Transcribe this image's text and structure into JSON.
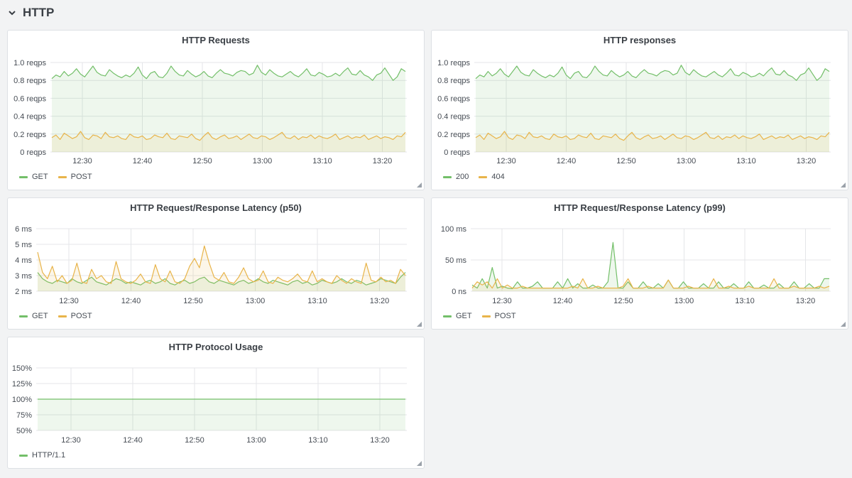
{
  "row": {
    "title": "HTTP"
  },
  "panels": {
    "requests": {
      "title": "HTTP Requests"
    },
    "responses": {
      "title": "HTTP responses"
    },
    "p50": {
      "title": "HTTP Request/Response Latency (p50)"
    },
    "p99": {
      "title": "HTTP Request/Response Latency (p99)"
    },
    "protocol": {
      "title": "HTTP Protocol Usage"
    }
  },
  "colors": {
    "green": "#73bf69",
    "yellow": "#e8b44a",
    "green_fill": "rgba(115,191,105,0.12)",
    "yellow_fill": "rgba(232,180,74,0.12)"
  },
  "chart_data": [
    {
      "id": "requests",
      "type": "line",
      "title": "HTTP Requests",
      "x_ticks": [
        "12:30",
        "12:40",
        "12:50",
        "13:00",
        "13:10",
        "13:20"
      ],
      "y_ticks": [
        "1.0 reqps",
        "0.8 reqps",
        "0.6 reqps",
        "0.4 reqps",
        "0.2 reqps",
        "0 reqps"
      ],
      "ylim": [
        0,
        1.0
      ],
      "grid": true,
      "legend": "bottom-left",
      "series": [
        {
          "name": "GET",
          "color": "#73bf69",
          "values": [
            0.82,
            0.86,
            0.84,
            0.9,
            0.85,
            0.88,
            0.93,
            0.87,
            0.84,
            0.9,
            0.96,
            0.89,
            0.86,
            0.85,
            0.92,
            0.88,
            0.85,
            0.83,
            0.86,
            0.84,
            0.88,
            0.95,
            0.86,
            0.82,
            0.88,
            0.9,
            0.84,
            0.83,
            0.88,
            0.96,
            0.9,
            0.86,
            0.85,
            0.91,
            0.87,
            0.84,
            0.86,
            0.9,
            0.85,
            0.83,
            0.88,
            0.92,
            0.88,
            0.87,
            0.85,
            0.89,
            0.91,
            0.9,
            0.86,
            0.88,
            0.97,
            0.89,
            0.86,
            0.92,
            0.88,
            0.85,
            0.84,
            0.87,
            0.9,
            0.86,
            0.84,
            0.88,
            0.93,
            0.86,
            0.85,
            0.89,
            0.87,
            0.84,
            0.85,
            0.88,
            0.85,
            0.9,
            0.94,
            0.87,
            0.86,
            0.91,
            0.86,
            0.84,
            0.8,
            0.86,
            0.88,
            0.94,
            0.87,
            0.8,
            0.84,
            0.93,
            0.9
          ]
        },
        {
          "name": "POST",
          "color": "#e8b44a",
          "values": [
            0.16,
            0.19,
            0.14,
            0.21,
            0.18,
            0.15,
            0.17,
            0.23,
            0.16,
            0.14,
            0.19,
            0.18,
            0.15,
            0.22,
            0.17,
            0.16,
            0.18,
            0.15,
            0.14,
            0.2,
            0.17,
            0.16,
            0.18,
            0.14,
            0.15,
            0.19,
            0.17,
            0.16,
            0.21,
            0.15,
            0.14,
            0.18,
            0.17,
            0.16,
            0.2,
            0.15,
            0.13,
            0.18,
            0.22,
            0.16,
            0.14,
            0.17,
            0.19,
            0.15,
            0.16,
            0.18,
            0.14,
            0.17,
            0.2,
            0.16,
            0.15,
            0.18,
            0.17,
            0.14,
            0.16,
            0.19,
            0.22,
            0.16,
            0.15,
            0.18,
            0.14,
            0.17,
            0.16,
            0.19,
            0.15,
            0.18,
            0.16,
            0.15,
            0.17,
            0.2,
            0.14,
            0.16,
            0.18,
            0.15,
            0.17,
            0.16,
            0.19,
            0.14,
            0.16,
            0.18,
            0.15,
            0.17,
            0.16,
            0.14,
            0.18,
            0.17,
            0.22
          ]
        }
      ]
    },
    {
      "id": "responses",
      "type": "line",
      "title": "HTTP responses",
      "x_ticks": [
        "12:30",
        "12:40",
        "12:50",
        "13:00",
        "13:10",
        "13:20"
      ],
      "y_ticks": [
        "1.0 reqps",
        "0.8 reqps",
        "0.6 reqps",
        "0.4 reqps",
        "0.2 reqps",
        "0 reqps"
      ],
      "ylim": [
        0,
        1.0
      ],
      "grid": true,
      "legend": "bottom-left",
      "series": [
        {
          "name": "200",
          "color": "#73bf69",
          "values": [
            0.82,
            0.86,
            0.84,
            0.9,
            0.85,
            0.88,
            0.93,
            0.87,
            0.84,
            0.9,
            0.96,
            0.89,
            0.86,
            0.85,
            0.92,
            0.88,
            0.85,
            0.83,
            0.86,
            0.84,
            0.88,
            0.95,
            0.86,
            0.82,
            0.88,
            0.9,
            0.84,
            0.83,
            0.88,
            0.96,
            0.9,
            0.86,
            0.85,
            0.91,
            0.87,
            0.84,
            0.86,
            0.9,
            0.85,
            0.83,
            0.88,
            0.92,
            0.88,
            0.87,
            0.85,
            0.89,
            0.91,
            0.9,
            0.86,
            0.88,
            0.97,
            0.89,
            0.86,
            0.92,
            0.88,
            0.85,
            0.84,
            0.87,
            0.9,
            0.86,
            0.84,
            0.88,
            0.93,
            0.86,
            0.85,
            0.89,
            0.87,
            0.84,
            0.85,
            0.88,
            0.85,
            0.9,
            0.94,
            0.87,
            0.86,
            0.91,
            0.86,
            0.84,
            0.8,
            0.86,
            0.88,
            0.94,
            0.87,
            0.8,
            0.84,
            0.93,
            0.9
          ]
        },
        {
          "name": "404",
          "color": "#e8b44a",
          "values": [
            0.16,
            0.19,
            0.14,
            0.21,
            0.18,
            0.15,
            0.17,
            0.23,
            0.16,
            0.14,
            0.19,
            0.18,
            0.15,
            0.22,
            0.17,
            0.16,
            0.18,
            0.15,
            0.14,
            0.2,
            0.17,
            0.16,
            0.18,
            0.14,
            0.15,
            0.19,
            0.17,
            0.16,
            0.21,
            0.15,
            0.14,
            0.18,
            0.17,
            0.16,
            0.2,
            0.15,
            0.13,
            0.18,
            0.22,
            0.16,
            0.14,
            0.17,
            0.19,
            0.15,
            0.16,
            0.18,
            0.14,
            0.17,
            0.2,
            0.16,
            0.15,
            0.18,
            0.17,
            0.14,
            0.16,
            0.19,
            0.22,
            0.16,
            0.15,
            0.18,
            0.14,
            0.17,
            0.16,
            0.19,
            0.15,
            0.18,
            0.16,
            0.15,
            0.17,
            0.2,
            0.14,
            0.16,
            0.18,
            0.15,
            0.17,
            0.16,
            0.19,
            0.14,
            0.16,
            0.18,
            0.15,
            0.17,
            0.16,
            0.14,
            0.18,
            0.17,
            0.22
          ]
        }
      ]
    },
    {
      "id": "p50",
      "type": "line",
      "title": "HTTP Request/Response Latency (p50)",
      "x_ticks": [
        "12:30",
        "12:40",
        "12:50",
        "13:00",
        "13:10",
        "13:20"
      ],
      "y_ticks": [
        "6 ms",
        "5 ms",
        "4 ms",
        "3 ms",
        "2 ms"
      ],
      "ylim": [
        2,
        6
      ],
      "grid": true,
      "legend": "bottom-left",
      "series": [
        {
          "name": "GET",
          "color": "#73bf69",
          "values": [
            3.2,
            2.8,
            2.6,
            2.5,
            2.7,
            2.6,
            2.5,
            2.8,
            2.6,
            2.5,
            2.7,
            2.9,
            2.6,
            2.5,
            2.4,
            2.6,
            2.8,
            2.7,
            2.5,
            2.6,
            2.5,
            2.4,
            2.6,
            2.7,
            2.5,
            2.6,
            2.8,
            2.5,
            2.4,
            2.6,
            2.7,
            2.5,
            2.6,
            2.8,
            2.9,
            2.6,
            2.5,
            2.7,
            2.6,
            2.5,
            2.4,
            2.6,
            2.7,
            2.5,
            2.6,
            2.8,
            2.6,
            2.5,
            2.7,
            2.6,
            2.5,
            2.4,
            2.6,
            2.7,
            2.5,
            2.6,
            2.4,
            2.5,
            2.7,
            2.6,
            2.5,
            2.6,
            2.8,
            2.6,
            2.5,
            2.7,
            2.6,
            2.4,
            2.5,
            2.6,
            2.8,
            2.7,
            2.6,
            2.5,
            2.9,
            3.2
          ]
        },
        {
          "name": "POST",
          "color": "#e8b44a",
          "values": [
            4.5,
            3.2,
            2.8,
            3.6,
            2.6,
            3.0,
            2.5,
            2.7,
            3.8,
            2.6,
            2.5,
            3.4,
            2.8,
            3.0,
            2.6,
            2.5,
            3.9,
            2.8,
            2.6,
            2.5,
            2.7,
            3.1,
            2.6,
            2.5,
            3.7,
            2.8,
            2.6,
            3.3,
            2.6,
            2.5,
            2.8,
            3.6,
            4.1,
            3.5,
            4.9,
            3.8,
            2.9,
            2.7,
            3.2,
            2.6,
            2.5,
            2.9,
            3.5,
            2.8,
            2.6,
            2.7,
            3.3,
            2.6,
            2.5,
            2.9,
            2.7,
            2.6,
            2.8,
            3.1,
            2.7,
            2.6,
            3.3,
            2.6,
            2.8,
            2.6,
            2.5,
            3.0,
            2.7,
            2.5,
            2.8,
            2.6,
            2.5,
            3.8,
            2.7,
            2.6,
            2.9,
            2.6,
            2.7,
            2.5,
            3.4,
            3.0
          ]
        }
      ]
    },
    {
      "id": "p99",
      "type": "line",
      "title": "HTTP Request/Response Latency (p99)",
      "x_ticks": [
        "12:30",
        "12:40",
        "12:50",
        "13:00",
        "13:10",
        "13:20"
      ],
      "y_ticks": [
        "100 ms",
        "50 ms",
        "0 ns"
      ],
      "ylim": [
        0,
        100
      ],
      "grid": true,
      "legend": "bottom-left",
      "series": [
        {
          "name": "GET",
          "color": "#73bf69",
          "values": [
            10,
            5,
            20,
            5,
            38,
            5,
            8,
            5,
            4,
            15,
            5,
            5,
            8,
            15,
            5,
            5,
            5,
            15,
            5,
            20,
            5,
            12,
            5,
            5,
            10,
            5,
            5,
            15,
            78,
            5,
            5,
            15,
            5,
            5,
            15,
            5,
            5,
            12,
            5,
            18,
            5,
            5,
            15,
            5,
            5,
            5,
            12,
            5,
            5,
            15,
            5,
            5,
            12,
            5,
            5,
            15,
            5,
            5,
            10,
            5,
            5,
            12,
            5,
            5,
            15,
            5,
            5,
            12,
            5,
            5,
            20,
            20
          ]
        },
        {
          "name": "POST",
          "color": "#e8b44a",
          "values": [
            5,
            15,
            10,
            15,
            5,
            20,
            5,
            10,
            5,
            5,
            8,
            5,
            5,
            5,
            5,
            5,
            5,
            5,
            5,
            5,
            8,
            5,
            20,
            5,
            5,
            8,
            5,
            5,
            5,
            5,
            8,
            20,
            5,
            5,
            5,
            8,
            5,
            5,
            5,
            18,
            5,
            5,
            5,
            8,
            5,
            5,
            5,
            5,
            20,
            5,
            5,
            8,
            5,
            5,
            5,
            8,
            5,
            5,
            5,
            5,
            20,
            5,
            5,
            5,
            8,
            5,
            5,
            5,
            5,
            8,
            5,
            8
          ]
        }
      ]
    },
    {
      "id": "protocol",
      "type": "line",
      "title": "HTTP Protocol Usage",
      "x_ticks": [
        "12:30",
        "12:40",
        "12:50",
        "13:00",
        "13:10",
        "13:20"
      ],
      "y_ticks": [
        "150%",
        "125%",
        "100%",
        "75%",
        "50%"
      ],
      "ylim": [
        50,
        150
      ],
      "grid": true,
      "legend": "bottom-left",
      "series": [
        {
          "name": "HTTP/1.1",
          "color": "#73bf69",
          "values": [
            100,
            100
          ]
        }
      ]
    }
  ]
}
